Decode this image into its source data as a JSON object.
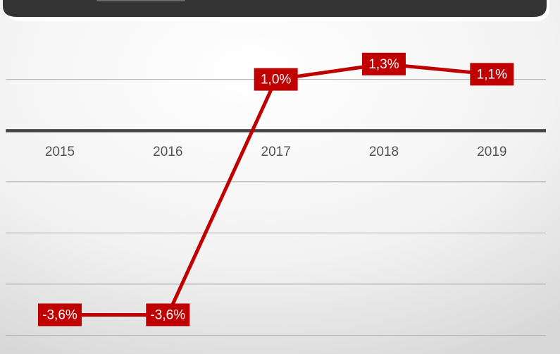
{
  "chart_data": {
    "type": "line",
    "categories": [
      "2015",
      "2016",
      "2017",
      "2018",
      "2019"
    ],
    "series": [
      {
        "color": "#c00000",
        "values": [
          -3.6,
          -3.6,
          1.0,
          1.3,
          1.1
        ],
        "value_labels": [
          "-3,6%",
          "-3,6%",
          "1,0%",
          "1,3%",
          "1,1%"
        ]
      }
    ],
    "ylim": [
      -4.2,
      2
    ],
    "yticks": [
      -4,
      -3,
      -2,
      -1,
      0,
      1
    ],
    "grid": true
  }
}
